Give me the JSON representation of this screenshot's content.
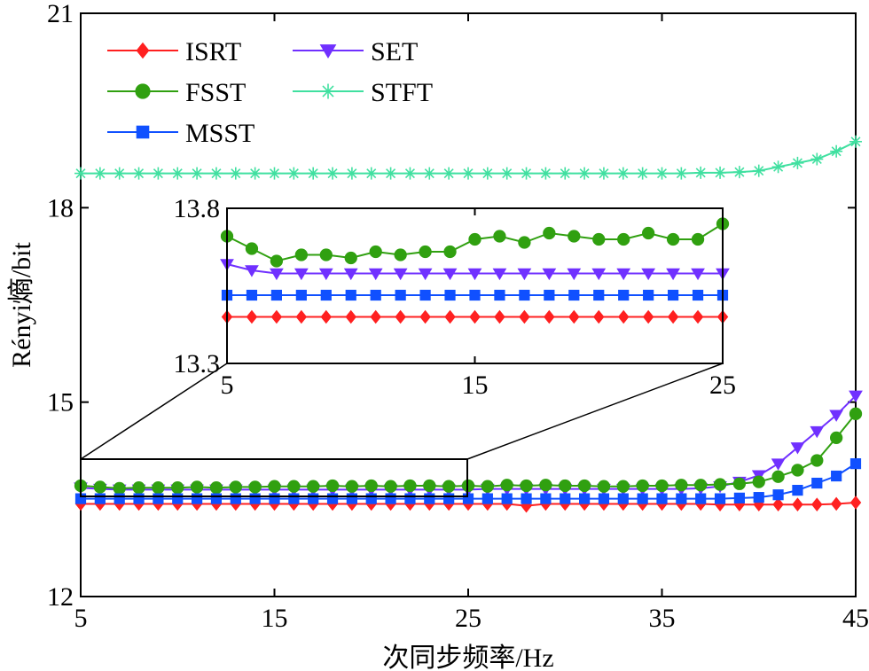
{
  "chart_data": {
    "type": "line",
    "xlabel": "次同步频率/Hz",
    "ylabel": "Rényi熵/bit",
    "xlim": [
      5,
      45
    ],
    "ylim": [
      12,
      21
    ],
    "xticks": [
      "5",
      "15",
      "25",
      "35",
      "45"
    ],
    "yticks": [
      "12",
      "15",
      "18",
      "21"
    ],
    "grid": false,
    "legend_position": "top-left",
    "x": [
      5,
      6,
      7,
      8,
      9,
      10,
      11,
      12,
      13,
      14,
      15,
      16,
      17,
      18,
      19,
      20,
      21,
      22,
      23,
      24,
      25,
      26,
      27,
      28,
      29,
      30,
      31,
      32,
      33,
      34,
      35,
      36,
      37,
      38,
      39,
      40,
      41,
      42,
      43,
      44,
      45
    ],
    "series": [
      {
        "name": "ISRT",
        "color": "#ff2020",
        "marker": "diamond",
        "values": [
          13.43,
          13.43,
          13.43,
          13.43,
          13.43,
          13.43,
          13.43,
          13.43,
          13.43,
          13.43,
          13.43,
          13.43,
          13.43,
          13.43,
          13.43,
          13.43,
          13.43,
          13.43,
          13.43,
          13.43,
          13.43,
          13.43,
          13.43,
          13.4,
          13.43,
          13.43,
          13.43,
          13.43,
          13.43,
          13.43,
          13.43,
          13.43,
          13.43,
          13.42,
          13.42,
          13.42,
          13.42,
          13.42,
          13.42,
          13.43,
          13.45
        ]
      },
      {
        "name": "SET",
        "color": "#7030ff",
        "marker": "triangle-down",
        "values": [
          13.68,
          13.66,
          13.65,
          13.65,
          13.65,
          13.65,
          13.65,
          13.65,
          13.65,
          13.65,
          13.65,
          13.65,
          13.65,
          13.65,
          13.65,
          13.65,
          13.65,
          13.65,
          13.65,
          13.65,
          13.65,
          13.66,
          13.66,
          13.66,
          13.66,
          13.66,
          13.66,
          13.66,
          13.66,
          13.66,
          13.66,
          13.66,
          13.67,
          13.7,
          13.77,
          13.87,
          14.05,
          14.3,
          14.55,
          14.8,
          15.1
        ]
      },
      {
        "name": "FSST",
        "color": "#30a010",
        "marker": "circle",
        "values": [
          13.71,
          13.69,
          13.67,
          13.68,
          13.68,
          13.68,
          13.69,
          13.68,
          13.69,
          13.69,
          13.7,
          13.7,
          13.7,
          13.71,
          13.7,
          13.71,
          13.7,
          13.71,
          13.71,
          13.7,
          13.71,
          13.7,
          13.72,
          13.71,
          13.72,
          13.71,
          13.71,
          13.7,
          13.7,
          13.71,
          13.71,
          13.72,
          13.72,
          13.73,
          13.74,
          13.77,
          13.85,
          13.95,
          14.1,
          14.45,
          14.82
        ]
      },
      {
        "name": "STFT",
        "color": "#40e0a0",
        "marker": "asterisk",
        "values": [
          18.53,
          18.53,
          18.53,
          18.53,
          18.53,
          18.53,
          18.53,
          18.53,
          18.53,
          18.53,
          18.53,
          18.53,
          18.53,
          18.53,
          18.53,
          18.53,
          18.53,
          18.53,
          18.53,
          18.53,
          18.53,
          18.53,
          18.53,
          18.53,
          18.53,
          18.53,
          18.53,
          18.53,
          18.53,
          18.53,
          18.53,
          18.53,
          18.54,
          18.54,
          18.55,
          18.57,
          18.63,
          18.69,
          18.75,
          18.87,
          19.02
        ]
      },
      {
        "name": "MSST",
        "color": "#1050ff",
        "marker": "square",
        "values": [
          13.51,
          13.51,
          13.51,
          13.51,
          13.51,
          13.51,
          13.51,
          13.51,
          13.51,
          13.51,
          13.51,
          13.51,
          13.51,
          13.51,
          13.51,
          13.51,
          13.51,
          13.51,
          13.51,
          13.51,
          13.51,
          13.51,
          13.51,
          13.51,
          13.51,
          13.51,
          13.51,
          13.51,
          13.51,
          13.51,
          13.51,
          13.51,
          13.51,
          13.51,
          13.52,
          13.53,
          13.57,
          13.64,
          13.75,
          13.86,
          14.05
        ]
      }
    ],
    "inset": {
      "xlim": [
        5,
        25
      ],
      "ylim": [
        13.3,
        13.8
      ],
      "xticks": [
        "5",
        "15",
        "25"
      ],
      "yticks": [
        "13.3",
        "13.8"
      ],
      "x": [
        5,
        6,
        7,
        8,
        9,
        10,
        11,
        12,
        13,
        14,
        15,
        16,
        17,
        18,
        19,
        20,
        21,
        22,
        23,
        24,
        25
      ],
      "series": [
        {
          "name": "ISRT",
          "values": [
            13.45,
            13.45,
            13.45,
            13.45,
            13.45,
            13.45,
            13.45,
            13.45,
            13.45,
            13.45,
            13.45,
            13.45,
            13.45,
            13.45,
            13.45,
            13.45,
            13.45,
            13.45,
            13.45,
            13.45,
            13.45
          ]
        },
        {
          "name": "SET",
          "values": [
            13.62,
            13.6,
            13.59,
            13.59,
            13.59,
            13.59,
            13.59,
            13.59,
            13.59,
            13.59,
            13.59,
            13.59,
            13.59,
            13.59,
            13.59,
            13.59,
            13.59,
            13.59,
            13.59,
            13.59,
            13.59
          ]
        },
        {
          "name": "FSST",
          "values": [
            13.71,
            13.67,
            13.63,
            13.65,
            13.65,
            13.64,
            13.66,
            13.65,
            13.66,
            13.66,
            13.7,
            13.71,
            13.69,
            13.72,
            13.71,
            13.7,
            13.7,
            13.72,
            13.7,
            13.7,
            13.75
          ]
        },
        {
          "name": "MSST",
          "values": [
            13.52,
            13.52,
            13.52,
            13.52,
            13.52,
            13.52,
            13.52,
            13.52,
            13.52,
            13.52,
            13.52,
            13.52,
            13.52,
            13.52,
            13.52,
            13.52,
            13.52,
            13.52,
            13.52,
            13.52,
            13.52
          ]
        }
      ]
    }
  }
}
